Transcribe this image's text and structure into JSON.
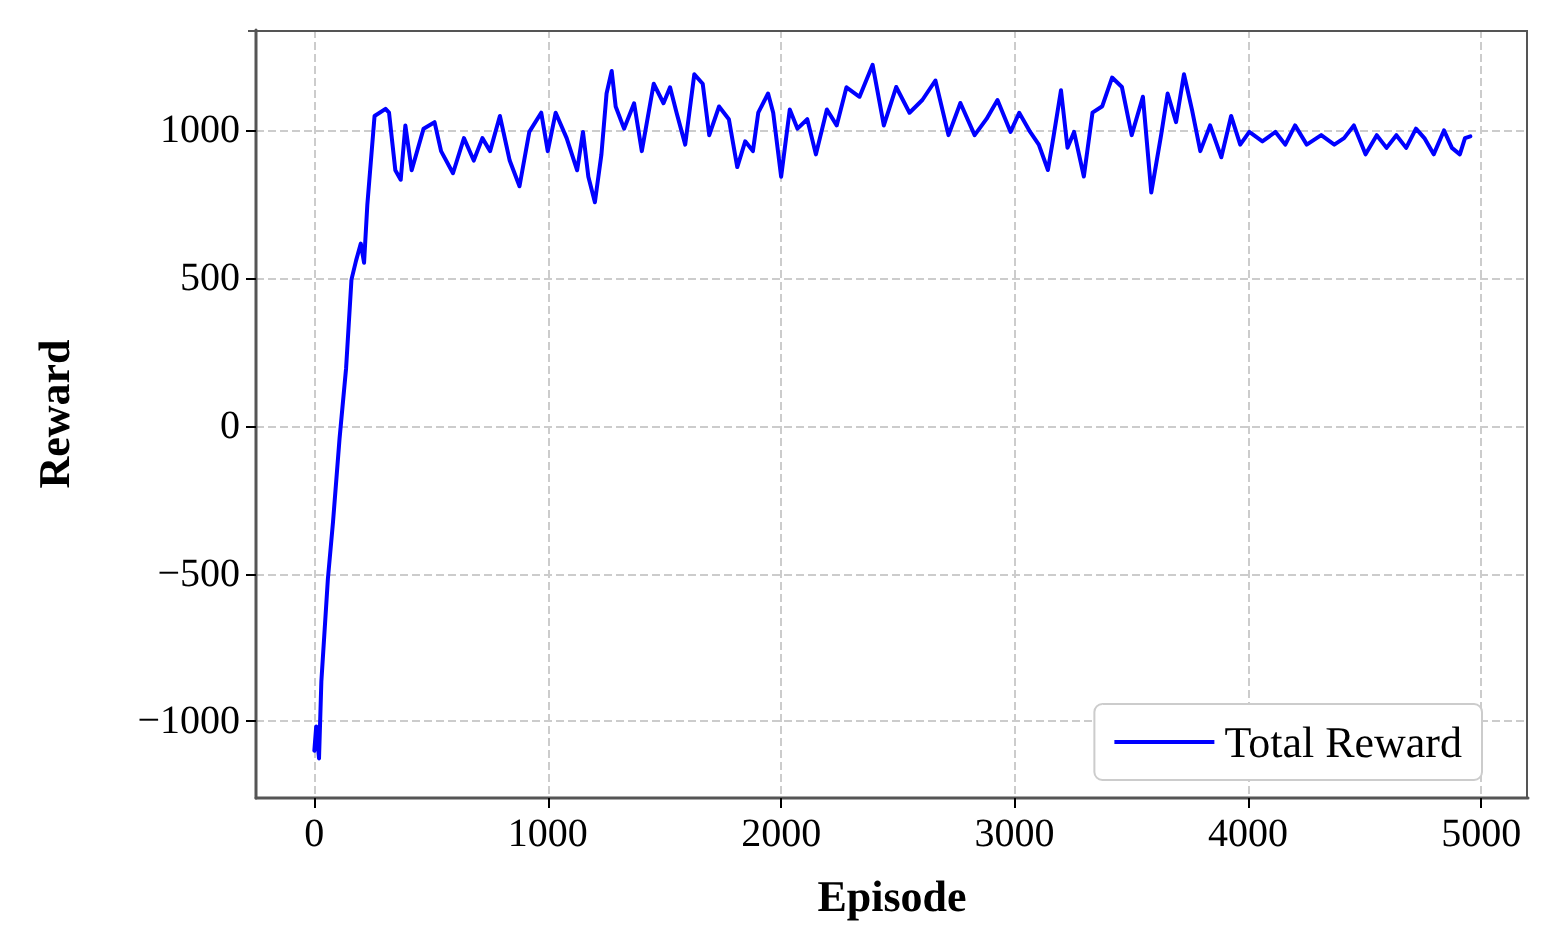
{
  "chart_data": {
    "type": "line",
    "xlabel": "Episode",
    "ylabel": "Reward",
    "xlim": [
      -250,
      5200
    ],
    "ylim": [
      -1260,
      1340
    ],
    "xticks": [
      0,
      1000,
      2000,
      3000,
      4000,
      5000
    ],
    "yticks": [
      -1000,
      -500,
      0,
      500,
      1000
    ],
    "grid": true,
    "legend": "bottom right",
    "line_style": "solid",
    "marker": "none",
    "series": [
      {
        "name": "Total Reward",
        "color": "#0000ff",
        "x": [
          0,
          8,
          20,
          30,
          58,
          80,
          108,
          136,
          159,
          179,
          199,
          213,
          227,
          258,
          305,
          320,
          347,
          370,
          390,
          417,
          468,
          515,
          543,
          594,
          641,
          683,
          720,
          753,
          795,
          837,
          879,
          921,
          972,
          1000,
          1034,
          1081,
          1126,
          1151,
          1174,
          1202,
          1230,
          1252,
          1274,
          1291,
          1327,
          1370,
          1403,
          1454,
          1496,
          1524,
          1552,
          1589,
          1628,
          1664,
          1692,
          1734,
          1776,
          1812,
          1846,
          1879,
          1902,
          1944,
          1966,
          2000,
          2037,
          2070,
          2112,
          2149,
          2196,
          2238,
          2280,
          2336,
          2392,
          2440,
          2493,
          2550,
          2605,
          2661,
          2717,
          2768,
          2829,
          2880,
          2927,
          2983,
          3020,
          3067,
          3104,
          3143,
          3166,
          3199,
          3227,
          3255,
          3297,
          3334,
          3376,
          3418,
          3460,
          3502,
          3550,
          3586,
          3628,
          3656,
          3692,
          3726,
          3760,
          3796,
          3838,
          3886,
          3928,
          3967,
          4006,
          4062,
          4118,
          4160,
          4202,
          4252,
          4314,
          4370,
          4412,
          4454,
          4504,
          4552,
          4594,
          4636,
          4678,
          4720,
          4756,
          4796,
          4840,
          4874,
          4908,
          4930,
          4953
        ],
        "values": [
          -1100,
          -1018,
          -1126,
          -866,
          -518,
          -325,
          -43,
          195,
          495,
          560,
          617,
          552,
          748,
          1049,
          1073,
          1060,
          865,
          833,
          1017,
          865,
          1006,
          1028,
          930,
          855,
          974,
          898,
          974,
          930,
          1049,
          898,
          811,
          995,
          1060,
          930,
          1060,
          974,
          865,
          995,
          843,
          757,
          919,
          1125,
          1201,
          1081,
          1006,
          1092,
          930,
          1158,
          1092,
          1146,
          1060,
          952,
          1190,
          1158,
          984,
          1081,
          1038,
          876,
          963,
          930,
          1060,
          1125,
          1060,
          843,
          1071,
          1006,
          1038,
          919,
          1071,
          1017,
          1146,
          1114,
          1222,
          1017,
          1147,
          1060,
          1103,
          1169,
          984,
          1093,
          984,
          1039,
          1103,
          995,
          1060,
          995,
          952,
          866,
          974,
          1136,
          941,
          995,
          844,
          1060,
          1082,
          1179,
          1147,
          984,
          1114,
          790,
          984,
          1125,
          1028,
          1190,
          1071,
          930,
          1017,
          909,
          1049,
          952,
          995,
          963,
          995,
          952,
          1017,
          952,
          984,
          952,
          974,
          1017,
          919,
          984,
          941,
          984,
          941,
          1006,
          974,
          919,
          1000,
          941,
          919,
          974,
          980
        ]
      }
    ]
  }
}
